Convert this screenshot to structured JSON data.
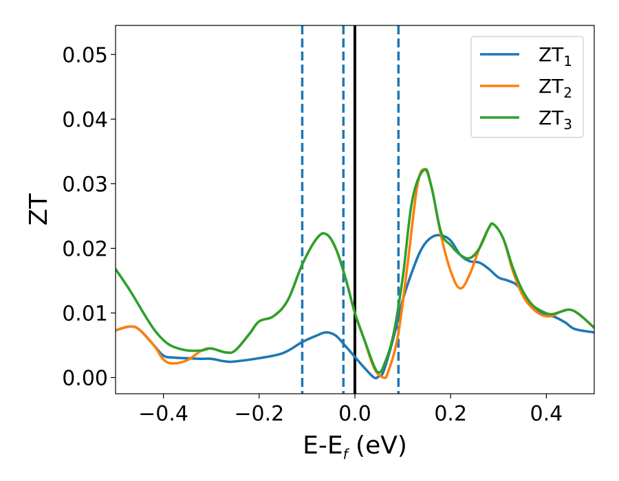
{
  "chart_data": {
    "type": "line",
    "title": "",
    "xlabel": "E-E_f (eV)",
    "xlabel_main": "E-E",
    "xlabel_sub": "f",
    "xlabel_tail": " (eV)",
    "ylabel": "ZT",
    "xlim": [
      -0.5,
      0.5
    ],
    "ylim": [
      -0.0025,
      0.0545
    ],
    "x_ticks": [
      -0.4,
      -0.2,
      0.0,
      0.2,
      0.4
    ],
    "x_tick_labels": [
      "−0.4",
      "−0.2",
      "0.0",
      "0.2",
      "0.4"
    ],
    "y_ticks": [
      0.0,
      0.01,
      0.02,
      0.03,
      0.04,
      0.05
    ],
    "y_tick_labels": [
      "0.00",
      "0.01",
      "0.02",
      "0.03",
      "0.04",
      "0.05"
    ],
    "grid": false,
    "legend_position": "top-right",
    "series": [
      {
        "name": "ZT",
        "name_sub": "1",
        "color": "#1f77b4",
        "points": [
          [
            -0.5,
            0.0073
          ],
          [
            -0.47,
            0.0079
          ],
          [
            -0.45,
            0.0074
          ],
          [
            -0.42,
            0.005
          ],
          [
            -0.4,
            0.0034
          ],
          [
            -0.38,
            0.0031
          ],
          [
            -0.35,
            0.003
          ],
          [
            -0.32,
            0.0029
          ],
          [
            -0.3,
            0.0029
          ],
          [
            -0.27,
            0.0025
          ],
          [
            -0.25,
            0.0025
          ],
          [
            -0.2,
            0.003
          ],
          [
            -0.15,
            0.0038
          ],
          [
            -0.11,
            0.0055
          ],
          [
            -0.08,
            0.0065
          ],
          [
            -0.06,
            0.007
          ],
          [
            -0.04,
            0.0065
          ],
          [
            -0.02,
            0.0049
          ],
          [
            0.0,
            0.0032
          ],
          [
            0.02,
            0.0015
          ],
          [
            0.04,
            0.0
          ],
          [
            0.05,
            0.0002
          ],
          [
            0.06,
            0.001
          ],
          [
            0.08,
            0.006
          ],
          [
            0.1,
            0.012
          ],
          [
            0.12,
            0.0165
          ],
          [
            0.14,
            0.02
          ],
          [
            0.16,
            0.0217
          ],
          [
            0.18,
            0.022
          ],
          [
            0.2,
            0.0212
          ],
          [
            0.22,
            0.019
          ],
          [
            0.24,
            0.018
          ],
          [
            0.26,
            0.0178
          ],
          [
            0.28,
            0.0168
          ],
          [
            0.3,
            0.0155
          ],
          [
            0.32,
            0.015
          ],
          [
            0.34,
            0.0142
          ],
          [
            0.36,
            0.012
          ],
          [
            0.38,
            0.0105
          ],
          [
            0.4,
            0.0098
          ],
          [
            0.42,
            0.0093
          ],
          [
            0.44,
            0.0085
          ],
          [
            0.46,
            0.0075
          ],
          [
            0.5,
            0.007
          ]
        ]
      },
      {
        "name": "ZT",
        "name_sub": "2",
        "color": "#ff7f0e",
        "points": [
          [
            -0.5,
            0.0073
          ],
          [
            -0.47,
            0.0079
          ],
          [
            -0.45,
            0.0074
          ],
          [
            -0.42,
            0.005
          ],
          [
            -0.4,
            0.0028
          ],
          [
            -0.38,
            0.0022
          ],
          [
            -0.35,
            0.0027
          ],
          [
            -0.32,
            0.0042
          ],
          [
            -0.3,
            0.0045
          ],
          [
            -0.27,
            0.0039
          ],
          [
            -0.25,
            0.0042
          ],
          [
            -0.22,
            0.0068
          ],
          [
            -0.2,
            0.0087
          ],
          [
            -0.17,
            0.0095
          ],
          [
            -0.14,
            0.012
          ],
          [
            -0.11,
            0.0175
          ],
          [
            -0.08,
            0.0215
          ],
          [
            -0.06,
            0.0222
          ],
          [
            -0.04,
            0.02
          ],
          [
            -0.02,
            0.0155
          ],
          [
            0.0,
            0.01
          ],
          [
            0.02,
            0.0058
          ],
          [
            0.04,
            0.0015
          ],
          [
            0.06,
            0.0
          ],
          [
            0.07,
            0.001
          ],
          [
            0.09,
            0.0065
          ],
          [
            0.11,
            0.0175
          ],
          [
            0.13,
            0.0295
          ],
          [
            0.145,
            0.0322
          ],
          [
            0.16,
            0.0295
          ],
          [
            0.18,
            0.022
          ],
          [
            0.2,
            0.0165
          ],
          [
            0.22,
            0.0138
          ],
          [
            0.24,
            0.016
          ],
          [
            0.26,
            0.02
          ],
          [
            0.28,
            0.0232
          ],
          [
            0.29,
            0.0237
          ],
          [
            0.31,
            0.0215
          ],
          [
            0.33,
            0.0165
          ],
          [
            0.35,
            0.0128
          ],
          [
            0.37,
            0.0108
          ],
          [
            0.39,
            0.0097
          ],
          [
            0.41,
            0.0095
          ],
          [
            0.43,
            0.0102
          ],
          [
            0.45,
            0.0105
          ],
          [
            0.47,
            0.0097
          ],
          [
            0.5,
            0.0077
          ]
        ]
      },
      {
        "name": "ZT",
        "name_sub": "3",
        "color": "#2ca02c",
        "points": [
          [
            -0.5,
            0.0168
          ],
          [
            -0.47,
            0.0135
          ],
          [
            -0.44,
            0.0098
          ],
          [
            -0.42,
            0.0075
          ],
          [
            -0.4,
            0.0058
          ],
          [
            -0.38,
            0.0048
          ],
          [
            -0.35,
            0.0042
          ],
          [
            -0.32,
            0.0042
          ],
          [
            -0.3,
            0.0045
          ],
          [
            -0.27,
            0.0039
          ],
          [
            -0.25,
            0.0042
          ],
          [
            -0.22,
            0.0068
          ],
          [
            -0.2,
            0.0087
          ],
          [
            -0.17,
            0.0095
          ],
          [
            -0.14,
            0.012
          ],
          [
            -0.11,
            0.0175
          ],
          [
            -0.08,
            0.0215
          ],
          [
            -0.06,
            0.0222
          ],
          [
            -0.04,
            0.02
          ],
          [
            -0.02,
            0.0155
          ],
          [
            0.0,
            0.01
          ],
          [
            0.02,
            0.0058
          ],
          [
            0.04,
            0.0018
          ],
          [
            0.05,
            0.0008
          ],
          [
            0.06,
            0.0018
          ],
          [
            0.08,
            0.0065
          ],
          [
            0.1,
            0.0155
          ],
          [
            0.12,
            0.0275
          ],
          [
            0.145,
            0.0322
          ],
          [
            0.16,
            0.0295
          ],
          [
            0.18,
            0.0225
          ],
          [
            0.2,
            0.0205
          ],
          [
            0.22,
            0.019
          ],
          [
            0.24,
            0.0185
          ],
          [
            0.26,
            0.02
          ],
          [
            0.28,
            0.0232
          ],
          [
            0.29,
            0.0237
          ],
          [
            0.31,
            0.0215
          ],
          [
            0.33,
            0.017
          ],
          [
            0.35,
            0.0135
          ],
          [
            0.37,
            0.0113
          ],
          [
            0.39,
            0.0103
          ],
          [
            0.41,
            0.0098
          ],
          [
            0.43,
            0.0102
          ],
          [
            0.45,
            0.0105
          ],
          [
            0.47,
            0.0097
          ],
          [
            0.5,
            0.0077
          ]
        ]
      }
    ],
    "reference_lines": [
      {
        "x": 0.0,
        "style": "solid",
        "color": "#000000"
      },
      {
        "x": -0.11,
        "style": "dashed",
        "color": "#1f77b4"
      },
      {
        "x": -0.024,
        "style": "dashed",
        "color": "#1f77b4"
      },
      {
        "x": 0.091,
        "style": "dashed",
        "color": "#1f77b4"
      }
    ]
  }
}
